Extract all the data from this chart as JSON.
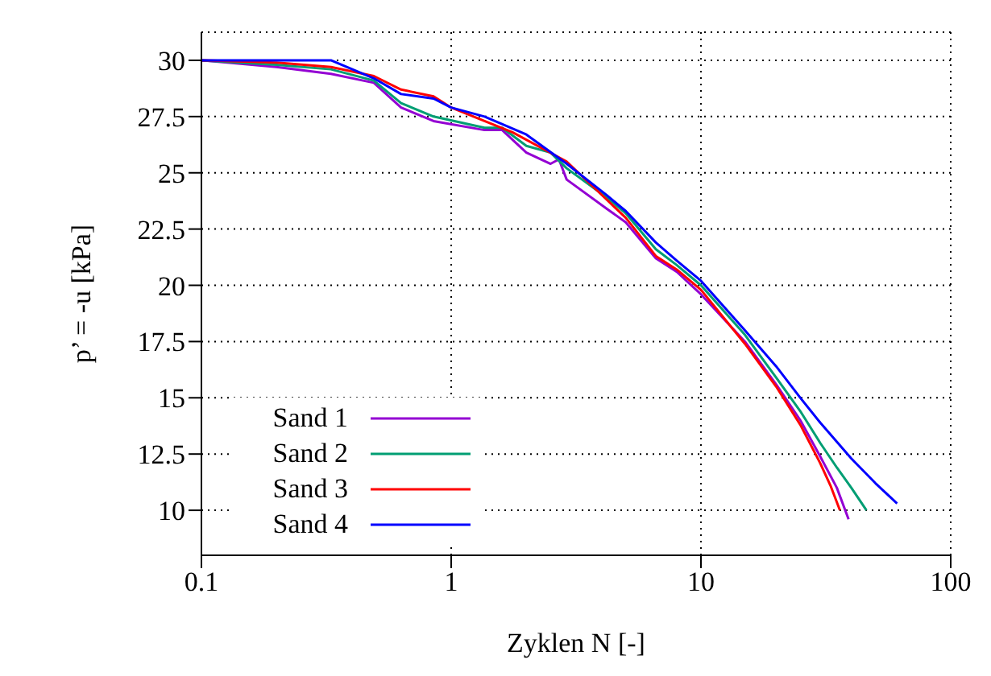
{
  "chart_data": {
    "type": "line",
    "xlabel": "Zyklen N [-]",
    "ylabel": "p’ = -u [kPa]",
    "log": "x",
    "grid": true,
    "legend": "bottom left",
    "marker": "none",
    "line_style": "solid",
    "xlim": [
      0.1,
      100
    ],
    "xticks": [
      0.1,
      1,
      10,
      100
    ],
    "ylim": [
      8,
      31.25
    ],
    "yticks": [
      10,
      12.5,
      15,
      17.5,
      20,
      22.5,
      25,
      27.5,
      30
    ],
    "series": [
      {
        "name": "Sand 1",
        "color": "#9400d3",
        "x": [
          0.1,
          0.2,
          0.33,
          0.49,
          0.63,
          0.85,
          1.36,
          1.6,
          2,
          2.5,
          2.7,
          2.9,
          4.2,
          5,
          6.6,
          8,
          10,
          15,
          20,
          25,
          30,
          35,
          39
        ],
        "values": [
          30,
          29.7,
          29.4,
          29.0,
          27.9,
          27.3,
          26.9,
          26.9,
          25.9,
          25.4,
          25.6,
          24.7,
          23.4,
          22.8,
          21.2,
          20.6,
          19.6,
          17.5,
          15.6,
          14.0,
          12.4,
          11.0,
          9.6
        ]
      },
      {
        "name": "Sand 2",
        "color": "#009e73",
        "x": [
          0.1,
          0.2,
          0.33,
          0.49,
          0.63,
          0.85,
          1.36,
          1.6,
          2,
          2.5,
          2.9,
          4.2,
          5,
          6.6,
          8,
          10,
          15,
          20,
          25,
          30,
          35,
          40,
          46
        ],
        "values": [
          30,
          29.8,
          29.6,
          29.1,
          28.1,
          27.5,
          27.0,
          27.0,
          26.2,
          25.9,
          25.2,
          23.9,
          23.2,
          21.6,
          20.9,
          20.0,
          17.8,
          15.9,
          14.4,
          13.0,
          11.9,
          11.0,
          10.0
        ]
      },
      {
        "name": "Sand 3",
        "color": "#ff0000",
        "x": [
          0.1,
          0.2,
          0.33,
          0.49,
          0.63,
          0.85,
          1.0,
          1.36,
          1.76,
          2.9,
          4.2,
          5,
          6.6,
          8,
          10,
          15,
          20,
          25,
          30,
          33,
          36
        ],
        "values": [
          30,
          29.9,
          29.7,
          29.3,
          28.7,
          28.4,
          27.9,
          27.3,
          26.8,
          25.5,
          23.8,
          23.0,
          21.3,
          20.7,
          19.8,
          17.4,
          15.5,
          13.8,
          12.1,
          11.1,
          10.0
        ]
      },
      {
        "name": "Sand 4",
        "color": "#0000ff",
        "x": [
          0.1,
          0.2,
          0.33,
          0.49,
          0.63,
          0.85,
          1.0,
          1.36,
          2,
          2.9,
          4.2,
          5,
          6.6,
          8,
          10,
          15,
          20,
          25,
          30,
          40,
          50,
          61
        ],
        "values": [
          30,
          30,
          30,
          29.2,
          28.5,
          28.3,
          27.9,
          27.5,
          26.7,
          25.4,
          24.0,
          23.3,
          21.9,
          21.1,
          20.2,
          18.0,
          16.4,
          15.0,
          13.9,
          12.3,
          11.2,
          10.3
        ]
      }
    ]
  }
}
